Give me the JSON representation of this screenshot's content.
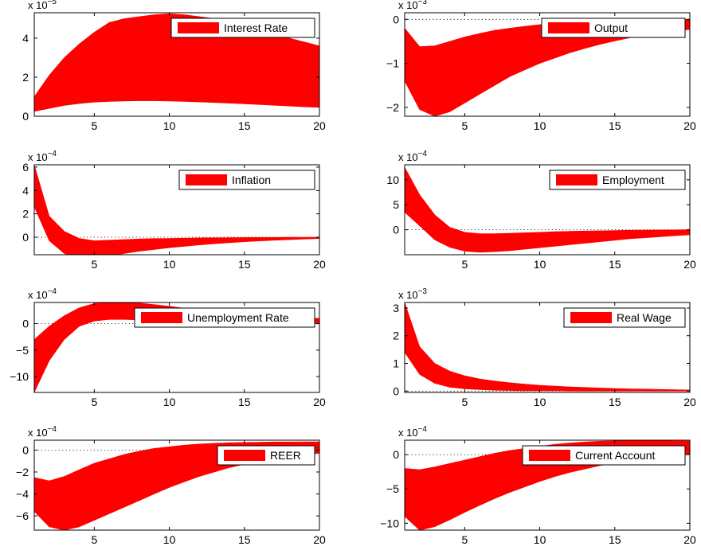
{
  "band_color": "#ff0000",
  "legend_swatch_color": "#ff0000",
  "chart_data": [
    {
      "type": "area",
      "legend": "Interest Rate",
      "legend_position": "top-right",
      "exponent": "x 10",
      "exponent_power": "−5",
      "x": [
        1,
        2,
        3,
        4,
        5,
        6,
        7,
        8,
        9,
        10,
        11,
        12,
        13,
        14,
        15,
        16,
        17,
        18,
        19,
        20
      ],
      "upper": [
        1.0,
        2.1,
        3.0,
        3.7,
        4.3,
        4.8,
        5.0,
        5.1,
        5.2,
        5.25,
        5.2,
        5.1,
        5.0,
        4.8,
        4.6,
        4.4,
        4.2,
        4.0,
        3.8,
        3.6
      ],
      "lower": [
        0.25,
        0.4,
        0.55,
        0.65,
        0.72,
        0.76,
        0.78,
        0.79,
        0.79,
        0.78,
        0.76,
        0.73,
        0.7,
        0.67,
        0.63,
        0.6,
        0.56,
        0.52,
        0.48,
        0.45
      ],
      "xlim": [
        1,
        20
      ],
      "ylim": [
        0,
        5.3
      ],
      "xticks": [
        5,
        10,
        15,
        20
      ],
      "yticks": [
        0,
        2,
        4
      ],
      "ytick_labels": [
        "0",
        "2",
        "4"
      ],
      "zero_line": false
    },
    {
      "type": "area",
      "legend": "Output",
      "legend_position": "top-right",
      "exponent": "x 10",
      "exponent_power": "−3",
      "x": [
        1,
        2,
        3,
        4,
        5,
        6,
        7,
        8,
        9,
        10,
        11,
        12,
        13,
        14,
        15,
        16,
        17,
        18,
        19,
        20
      ],
      "upper": [
        -0.2,
        -0.62,
        -0.6,
        -0.5,
        -0.4,
        -0.32,
        -0.25,
        -0.2,
        -0.16,
        -0.12,
        -0.09,
        -0.07,
        -0.05,
        -0.04,
        -0.03,
        -0.02,
        -0.01,
        -0.01,
        0,
        0
      ],
      "lower": [
        -1.4,
        -2.05,
        -2.2,
        -2.1,
        -1.9,
        -1.7,
        -1.5,
        -1.3,
        -1.15,
        -1.0,
        -0.88,
        -0.76,
        -0.66,
        -0.57,
        -0.49,
        -0.42,
        -0.36,
        -0.31,
        -0.27,
        -0.23
      ],
      "xlim": [
        1,
        20
      ],
      "ylim": [
        -2.2,
        0.15
      ],
      "xticks": [
        5,
        10,
        15,
        20
      ],
      "yticks": [
        -2,
        -1,
        0
      ],
      "ytick_labels": [
        "−2",
        "−1",
        "0"
      ],
      "zero_line": true
    },
    {
      "type": "area",
      "legend": "Inflation",
      "legend_position": "top-right",
      "exponent": "x 10",
      "exponent_power": "−4",
      "x": [
        1,
        2,
        3,
        4,
        5,
        6,
        7,
        8,
        9,
        10,
        11,
        12,
        13,
        14,
        15,
        16,
        17,
        18,
        19,
        20
      ],
      "upper": [
        6.2,
        1.8,
        0.5,
        -0.1,
        -0.3,
        -0.25,
        -0.2,
        -0.15,
        -0.12,
        -0.1,
        -0.08,
        -0.06,
        -0.05,
        -0.04,
        -0.03,
        -0.02,
        -0.02,
        -0.01,
        -0.01,
        0
      ],
      "lower": [
        2.6,
        -0.3,
        -1.4,
        -1.8,
        -1.8,
        -1.6,
        -1.4,
        -1.2,
        -1.05,
        -0.9,
        -0.78,
        -0.66,
        -0.56,
        -0.47,
        -0.39,
        -0.32,
        -0.26,
        -0.21,
        -0.16,
        -0.12
      ],
      "xlim": [
        1,
        20
      ],
      "ylim": [
        -1.5,
        6.2
      ],
      "xticks": [
        5,
        10,
        15,
        20
      ],
      "yticks": [
        0,
        2,
        4,
        6
      ],
      "ytick_labels": [
        "0",
        "2",
        "4",
        "6"
      ],
      "zero_line": true
    },
    {
      "type": "area",
      "legend": "Employment",
      "legend_position": "top-right",
      "exponent": "x 10",
      "exponent_power": "−4",
      "x": [
        1,
        2,
        3,
        4,
        5,
        6,
        7,
        8,
        9,
        10,
        11,
        12,
        13,
        14,
        15,
        16,
        17,
        18,
        19,
        20
      ],
      "upper": [
        12.5,
        7.0,
        3.0,
        0.5,
        -0.5,
        -0.8,
        -0.8,
        -0.7,
        -0.6,
        -0.5,
        -0.4,
        -0.3,
        -0.25,
        -0.2,
        -0.15,
        -0.1,
        -0.08,
        -0.05,
        -0.03,
        0
      ],
      "lower": [
        3.5,
        0.8,
        -2.0,
        -3.5,
        -4.3,
        -4.5,
        -4.4,
        -4.2,
        -3.9,
        -3.6,
        -3.3,
        -3.0,
        -2.7,
        -2.4,
        -2.1,
        -1.8,
        -1.6,
        -1.4,
        -1.2,
        -1.0
      ],
      "xlim": [
        1,
        20
      ],
      "ylim": [
        -5,
        13
      ],
      "xticks": [
        5,
        10,
        15,
        20
      ],
      "yticks": [
        0,
        5,
        10
      ],
      "ytick_labels": [
        "0",
        "5",
        "10"
      ],
      "zero_line": true
    },
    {
      "type": "area",
      "legend": "Unemployment Rate",
      "legend_position": "top-right",
      "exponent": "x 10",
      "exponent_power": "−4",
      "x": [
        1,
        2,
        3,
        4,
        5,
        6,
        7,
        8,
        9,
        10,
        11,
        12,
        13,
        14,
        15,
        16,
        17,
        18,
        19,
        20
      ],
      "upper": [
        -3.0,
        -0.5,
        1.5,
        3.0,
        3.8,
        4.1,
        4.1,
        3.9,
        3.6,
        3.3,
        2.9,
        2.6,
        2.3,
        2.0,
        1.8,
        1.6,
        1.4,
        1.2,
        1.1,
        1.0
      ],
      "lower": [
        -13.0,
        -7.0,
        -3.0,
        -0.5,
        0.5,
        0.8,
        0.8,
        0.7,
        0.6,
        0.5,
        0.4,
        0.3,
        0.25,
        0.2,
        0.15,
        0.1,
        0.08,
        0.05,
        0.03,
        0
      ],
      "xlim": [
        1,
        20
      ],
      "ylim": [
        -13,
        4
      ],
      "xticks": [
        5,
        10,
        15,
        20
      ],
      "yticks": [
        -10,
        -5,
        0
      ],
      "ytick_labels": [
        "−10",
        "−5",
        "0"
      ],
      "zero_line": true
    },
    {
      "type": "area",
      "legend": "Real Wage",
      "legend_position": "top-right",
      "exponent": "x 10",
      "exponent_power": "−3",
      "x": [
        1,
        2,
        3,
        4,
        5,
        6,
        7,
        8,
        9,
        10,
        11,
        12,
        13,
        14,
        15,
        16,
        17,
        18,
        19,
        20
      ],
      "upper": [
        3.2,
        1.6,
        1.0,
        0.72,
        0.55,
        0.44,
        0.36,
        0.3,
        0.25,
        0.21,
        0.18,
        0.15,
        0.13,
        0.11,
        0.09,
        0.08,
        0.07,
        0.06,
        0.05,
        0.04
      ],
      "lower": [
        1.4,
        0.6,
        0.28,
        0.14,
        0.08,
        0.05,
        0.03,
        0.02,
        0.01,
        0.01,
        0.01,
        0,
        0,
        0,
        0,
        0,
        0,
        0,
        0,
        0
      ],
      "xlim": [
        1,
        20
      ],
      "ylim": [
        -0.05,
        3.2
      ],
      "xticks": [
        5,
        10,
        15,
        20
      ],
      "yticks": [
        0,
        1,
        2,
        3
      ],
      "ytick_labels": [
        "0",
        "1",
        "2",
        "3"
      ],
      "zero_line": true
    },
    {
      "type": "area",
      "legend": "REER",
      "legend_position": "top-right",
      "exponent": "x 10",
      "exponent_power": "−4",
      "x": [
        1,
        2,
        3,
        4,
        5,
        6,
        7,
        8,
        9,
        10,
        11,
        12,
        13,
        14,
        15,
        16,
        17,
        18,
        19,
        20
      ],
      "upper": [
        -2.5,
        -2.8,
        -2.4,
        -1.8,
        -1.2,
        -0.8,
        -0.4,
        -0.1,
        0.15,
        0.3,
        0.45,
        0.55,
        0.62,
        0.67,
        0.7,
        0.72,
        0.74,
        0.74,
        0.75,
        0.75
      ],
      "lower": [
        -5.6,
        -7.0,
        -7.3,
        -7.0,
        -6.4,
        -5.8,
        -5.2,
        -4.6,
        -4.0,
        -3.4,
        -2.9,
        -2.4,
        -2.0,
        -1.6,
        -1.3,
        -1.0,
        -0.8,
        -0.6,
        -0.45,
        -0.3
      ],
      "xlim": [
        1,
        20
      ],
      "ylim": [
        -7.3,
        0.9
      ],
      "xticks": [
        5,
        10,
        15,
        20
      ],
      "yticks": [
        -6,
        -4,
        -2,
        0
      ],
      "ytick_labels": [
        "−6",
        "−4",
        "−2",
        "0"
      ],
      "zero_line": true
    },
    {
      "type": "area",
      "legend": "Current Account",
      "legend_position": "top-right",
      "exponent": "x 10",
      "exponent_power": "−4",
      "x": [
        1,
        2,
        3,
        4,
        5,
        6,
        7,
        8,
        9,
        10,
        11,
        12,
        13,
        14,
        15,
        16,
        17,
        18,
        19,
        20
      ],
      "upper": [
        -2.0,
        -2.2,
        -1.8,
        -1.3,
        -0.8,
        -0.3,
        0.2,
        0.6,
        0.9,
        1.2,
        1.5,
        1.7,
        1.85,
        1.95,
        2.0,
        2.05,
        2.05,
        2.05,
        2.0,
        2.0
      ],
      "lower": [
        -9.0,
        -11.0,
        -10.5,
        -9.5,
        -8.4,
        -7.4,
        -6.4,
        -5.5,
        -4.7,
        -3.9,
        -3.2,
        -2.6,
        -2.1,
        -1.6,
        -1.2,
        -0.9,
        -0.6,
        -0.4,
        -0.2,
        0
      ],
      "xlim": [
        1,
        20
      ],
      "ylim": [
        -11,
        2.1
      ],
      "xticks": [
        5,
        10,
        15,
        20
      ],
      "yticks": [
        -10,
        -5,
        0
      ],
      "ytick_labels": [
        "−10",
        "−5",
        "0"
      ],
      "zero_line": true
    }
  ]
}
